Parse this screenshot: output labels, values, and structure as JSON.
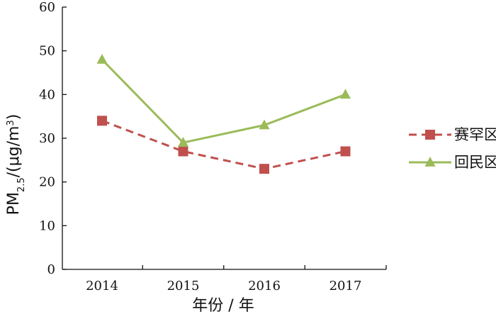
{
  "chart_data": {
    "type": "line",
    "categories": [
      "2014",
      "2015",
      "2016",
      "2017"
    ],
    "xlabel": "年份 / 年",
    "ylabel": {
      "prefix": "PM",
      "sub": "2.5",
      "mid": "/(μg/m",
      "sup": "3",
      "suffix": ")"
    },
    "ylim": [
      0,
      60
    ],
    "yticks": [
      0,
      10,
      20,
      30,
      40,
      50,
      60
    ],
    "grid": false,
    "legend_position": "right",
    "series": [
      {
        "name": "赛罕区",
        "values": [
          34,
          27,
          23,
          27
        ],
        "color": "#c0504d",
        "line_style": "dashed",
        "marker": "square"
      },
      {
        "name": "回民区",
        "values": [
          48,
          29,
          33,
          40
        ],
        "color": "#9bbb59",
        "line_style": "solid",
        "marker": "triangle"
      }
    ]
  }
}
